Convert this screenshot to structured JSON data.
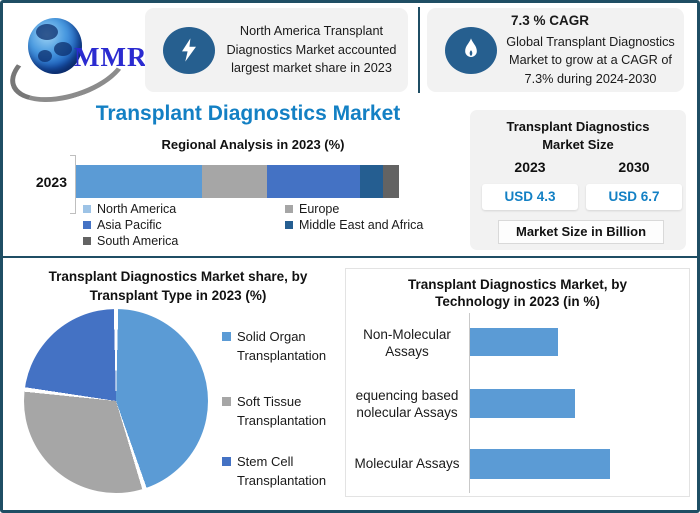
{
  "colors": {
    "frame_border": "#1F4E64",
    "accent_blue": "#1380C4",
    "panel_bg": "#F2F2F2",
    "icon_circle_bg": "#265F8F",
    "light_blue": "#5B9BD5",
    "gray": "#A6A6A6",
    "medium_blue": "#4472C4",
    "dark_blue": "#255E91",
    "dark_gray": "#636363",
    "logo_blue": "#2B2BD0"
  },
  "header": {
    "logo": {
      "text": "MMR"
    },
    "highlight1": {
      "icon": "lightning-bolt",
      "lines": [
        "North America Transplant",
        "Diagnostics Market accounted",
        "largest market share in 2023"
      ]
    },
    "highlight2": {
      "icon": "flame",
      "heading": "7.3 % CAGR",
      "lines": [
        "Global Transplant Diagnostics",
        "Market to grow at a CAGR of",
        "7.3% during 2024-2030"
      ]
    }
  },
  "main_title": "Transplant Diagnostics Market",
  "market_size_panel": {
    "title_line1": "Transplant Diagnostics",
    "title_line2": "Market Size",
    "year_left": "2023",
    "year_right": "2030",
    "value_left": "USD 4.3",
    "value_right": "USD 6.7",
    "note": "Market Size in Billion"
  },
  "chart_data": [
    {
      "type": "bar",
      "subtype": "horizontal-stacked",
      "title": "Regional Analysis in 2023 (%)",
      "categories": [
        "2023"
      ],
      "series": [
        {
          "name": "North America",
          "values": [
            39
          ],
          "color": "#5B9BD5",
          "marker_color": "#9DC3E6"
        },
        {
          "name": "Europe",
          "values": [
            20
          ],
          "color": "#A6A6A6",
          "marker_color": "#A6A6A6"
        },
        {
          "name": "Asia Pacific",
          "values": [
            29
          ],
          "color": "#4472C4",
          "marker_color": "#4472C4"
        },
        {
          "name": "Middle East and Africa",
          "values": [
            7
          ],
          "color": "#255E91",
          "marker_color": "#255E91"
        },
        {
          "name": "South America",
          "values": [
            5
          ],
          "color": "#636363",
          "marker_color": "#636363"
        }
      ],
      "xlim": [
        0,
        100
      ],
      "legend_position": "bottom",
      "grid": false
    },
    {
      "type": "pie",
      "title": "Transplant Diagnostics Market share, by Transplant Type in 2023  (%)",
      "title_line1": "Transplant Diagnostics Market share, by",
      "title_line2": "Transplant Type in 2023  (%)",
      "slices": [
        {
          "label": "Solid Organ Transplantation",
          "value": 45,
          "color": "#5B9BD5"
        },
        {
          "label": "Soft Tissue Transplantation",
          "value": 32,
          "color": "#A6A6A6"
        },
        {
          "label": "Stem Cell Transplantation",
          "value": 23,
          "color": "#4472C4"
        }
      ],
      "start_angle_deg": 0,
      "legend_position": "right"
    },
    {
      "type": "bar",
      "subtype": "horizontal",
      "title": "Transplant Diagnostics Market, by Technology in 2023 (in %)",
      "title_line1": "Transplant Diagnostics Market, by",
      "title_line2": "Technology in 2023 (in %)",
      "categories": [
        [
          "Non-Molecular",
          "Assays"
        ],
        [
          "equencing based",
          "nolecular Assays"
        ],
        [
          "Molecular Assays"
        ]
      ],
      "values": [
        25,
        30,
        40
      ],
      "color": "#5B9BD5",
      "xlim": [
        0,
        45
      ],
      "grid": false
    }
  ]
}
